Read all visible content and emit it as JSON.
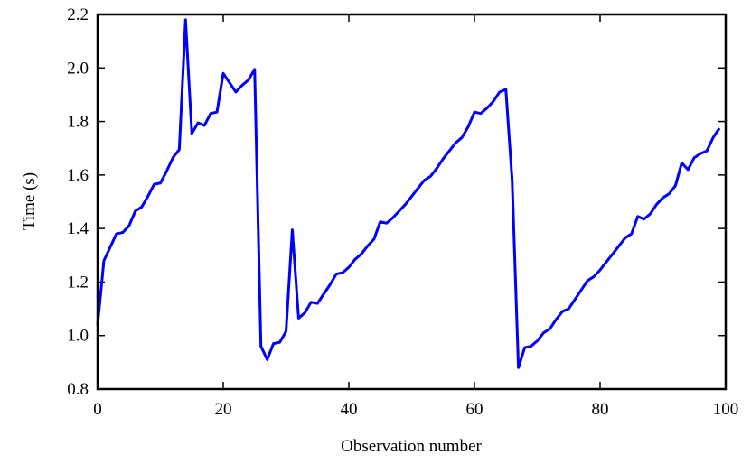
{
  "chart_data": {
    "type": "line",
    "xlabel": "Observation number",
    "ylabel": "Time (s)",
    "color": "#0000ff",
    "x": [
      0,
      1,
      2,
      3,
      4,
      5,
      6,
      7,
      8,
      9,
      10,
      11,
      12,
      13,
      14,
      15,
      16,
      17,
      18,
      19,
      20,
      21,
      22,
      23,
      24,
      25,
      26,
      27,
      28,
      29,
      30,
      31,
      32,
      33,
      34,
      35,
      36,
      37,
      38,
      39,
      40,
      41,
      42,
      43,
      44,
      45,
      46,
      47,
      48,
      49,
      50,
      51,
      52,
      53,
      54,
      55,
      56,
      57,
      58,
      59,
      60,
      61,
      62,
      63,
      64,
      65,
      66,
      67,
      68,
      69,
      70,
      71,
      72,
      73,
      74,
      75,
      76,
      77,
      78,
      79,
      80,
      81,
      82,
      83,
      84,
      85,
      86,
      87,
      88,
      89,
      90,
      91,
      92,
      93,
      94,
      95,
      96,
      97,
      98,
      99
    ],
    "values": [
      1.04,
      1.28,
      1.33,
      1.38,
      1.385,
      1.41,
      1.465,
      1.48,
      1.52,
      1.565,
      1.57,
      1.615,
      1.665,
      1.695,
      2.18,
      1.755,
      1.795,
      1.785,
      1.83,
      1.835,
      1.98,
      1.945,
      1.91,
      1.935,
      1.955,
      1.995,
      0.96,
      0.91,
      0.97,
      0.975,
      1.015,
      1.395,
      1.065,
      1.085,
      1.125,
      1.12,
      1.155,
      1.19,
      1.23,
      1.235,
      1.255,
      1.285,
      1.305,
      1.335,
      1.36,
      1.425,
      1.42,
      1.44,
      1.465,
      1.49,
      1.52,
      1.55,
      1.58,
      1.595,
      1.625,
      1.66,
      1.69,
      1.72,
      1.74,
      1.78,
      1.835,
      1.83,
      1.85,
      1.875,
      1.91,
      1.92,
      1.58,
      0.88,
      0.955,
      0.96,
      0.98,
      1.01,
      1.025,
      1.06,
      1.09,
      1.1,
      1.135,
      1.17,
      1.205,
      1.22,
      1.245,
      1.275,
      1.305,
      1.335,
      1.365,
      1.38,
      1.445,
      1.435,
      1.455,
      1.49,
      1.515,
      1.53,
      1.56,
      1.645,
      1.62,
      1.665,
      1.68,
      1.69,
      1.74,
      1.775
    ],
    "xlim": [
      0,
      100
    ],
    "xticks": [
      0,
      20,
      40,
      60,
      80,
      100
    ],
    "ylim": [
      0.8,
      2.2
    ],
    "yticks": [
      0.8,
      {
        "value": 1,
        "label": "1.0"
      },
      1.2,
      1.4,
      1.6,
      1.8,
      {
        "value": 2,
        "label": "2.0"
      },
      2.2
    ],
    "grid": false
  }
}
